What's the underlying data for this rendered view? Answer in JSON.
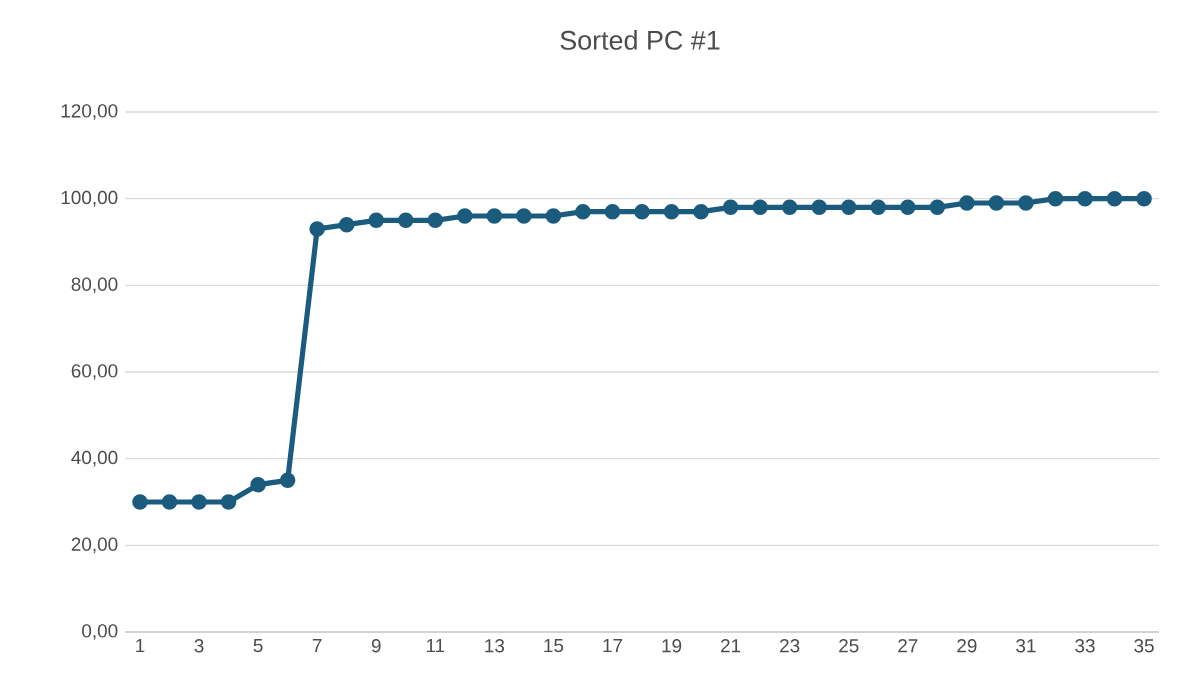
{
  "chart_data": {
    "type": "line",
    "title": "Sorted PC #1",
    "categories": [
      "1",
      null,
      "3",
      null,
      "5",
      null,
      "7",
      null,
      "9",
      null,
      "11",
      null,
      "13",
      null,
      "15",
      null,
      "17",
      null,
      "19",
      null,
      "21",
      null,
      "23",
      null,
      "25",
      null,
      "27",
      null,
      "29",
      null,
      "31",
      null,
      "33",
      null,
      "35"
    ],
    "series": [
      {
        "color": "#1a5b7e",
        "values": [
          30,
          30,
          30,
          30,
          34,
          35,
          93,
          94,
          95,
          95,
          95,
          96,
          96,
          96,
          96,
          97,
          97,
          97,
          97,
          97,
          98,
          98,
          98,
          98,
          98,
          98,
          98,
          98,
          99,
          99,
          99,
          100,
          100,
          100,
          100
        ]
      }
    ],
    "ylim": [
      0,
      120
    ],
    "yticks": [
      {
        "value": 0,
        "label": "0,00"
      },
      {
        "value": 20,
        "label": "20,00"
      },
      {
        "value": 40,
        "label": "40,00"
      },
      {
        "value": 60,
        "label": "60,00"
      },
      {
        "value": 80,
        "label": "80,00"
      },
      {
        "value": 100,
        "label": "100,00"
      },
      {
        "value": 120,
        "label": "120,00"
      }
    ],
    "grid": "y",
    "marker": "circle",
    "line_style": "solid"
  }
}
